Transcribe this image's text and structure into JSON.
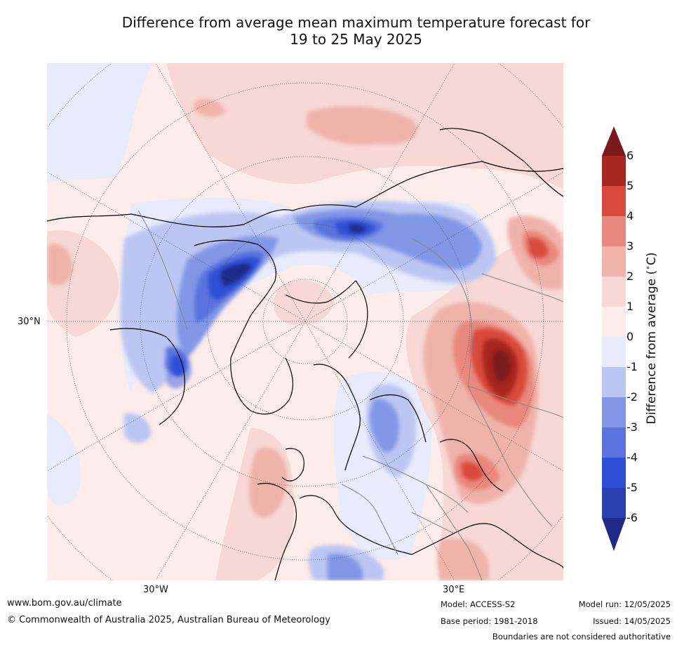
{
  "title_line1": "Difference from average mean maximum temperature forecast for",
  "title_line2": "19 to 25 May 2025",
  "map": {
    "lat_label": "30°N",
    "lon_labels": [
      "30°W",
      "30°E"
    ]
  },
  "colorbar": {
    "title": "Difference from average (∘C)",
    "title_text": "Difference from average (",
    "title_unit": "C)",
    "ticks": [
      "6",
      "5",
      "4",
      "3",
      "2",
      "1",
      "0",
      "-1",
      "-2",
      "-3",
      "-4",
      "-5",
      "-6"
    ],
    "colors": [
      "#7a1a1a",
      "#a8281f",
      "#d94a3e",
      "#e9887c",
      "#efb3aa",
      "#f7d8d4",
      "#fcecea",
      "#e8ebfb",
      "#bcc6f2",
      "#8197e6",
      "#5a73dd",
      "#2e4fd6",
      "#2a3fb0",
      "#1f2a88"
    ]
  },
  "footer": {
    "url": "www.bom.gov.au/climate",
    "copyright": "© Commonwealth of Australia 2025, Australian Bureau of Meteorology",
    "model": "Model: ACCESS-S2",
    "base_period": "Base period: 1981-2018",
    "model_run": "Model run: 12/05/2025",
    "issued": "Issued: 14/05/2025",
    "disclaimer": "Boundaries are not considered authoritative"
  }
}
